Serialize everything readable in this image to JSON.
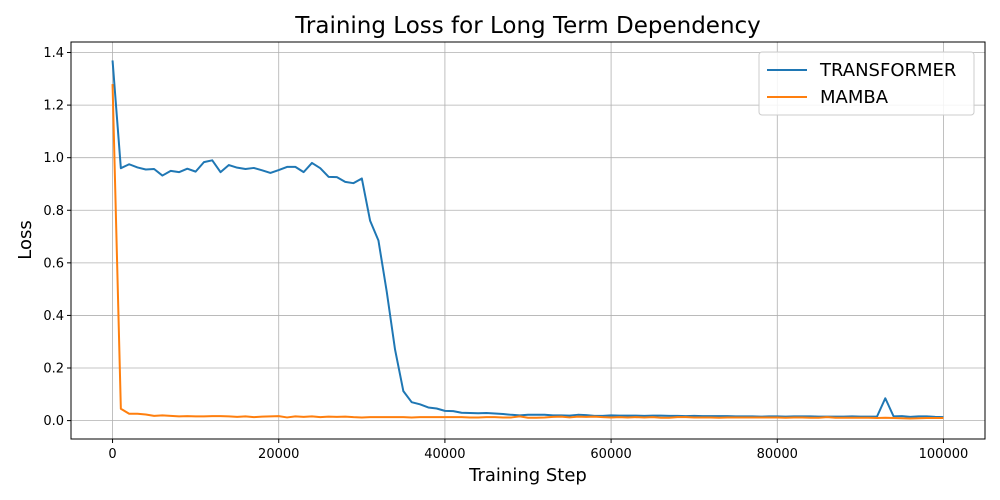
{
  "chart_data": {
    "type": "line",
    "title": "Training Loss for Long Term Dependency",
    "xlabel": "Training Step",
    "ylabel": "Loss",
    "xlim": [
      -5000,
      105000
    ],
    "ylim": [
      -0.07,
      1.44
    ],
    "xticks": [
      0,
      20000,
      40000,
      60000,
      80000,
      100000
    ],
    "xtick_labels": [
      "0",
      "20000",
      "40000",
      "60000",
      "80000",
      "100000"
    ],
    "yticks": [
      0.0,
      0.2,
      0.4,
      0.6,
      0.8,
      1.0,
      1.2,
      1.4
    ],
    "ytick_labels": [
      "0.0",
      "0.2",
      "0.4",
      "0.6",
      "0.8",
      "1.0",
      "1.2",
      "1.4"
    ],
    "grid": true,
    "legend_position": "top-right",
    "x": [
      0,
      1000,
      2000,
      3000,
      4000,
      5000,
      6000,
      7000,
      8000,
      9000,
      10000,
      11000,
      12000,
      13000,
      14000,
      15000,
      16000,
      17000,
      18000,
      19000,
      20000,
      21000,
      22000,
      23000,
      24000,
      25000,
      26000,
      27000,
      28000,
      29000,
      30000,
      31000,
      32000,
      33000,
      34000,
      35000,
      36000,
      37000,
      38000,
      39000,
      40000,
      41000,
      42000,
      43000,
      44000,
      45000,
      46000,
      47000,
      48000,
      49000,
      50000,
      51000,
      52000,
      53000,
      54000,
      55000,
      56000,
      57000,
      58000,
      59000,
      60000,
      61000,
      62000,
      63000,
      64000,
      65000,
      66000,
      67000,
      68000,
      69000,
      70000,
      71000,
      72000,
      73000,
      74000,
      75000,
      76000,
      77000,
      78000,
      79000,
      80000,
      81000,
      82000,
      83000,
      84000,
      85000,
      86000,
      87000,
      88000,
      89000,
      90000,
      91000,
      92000,
      93000,
      94000,
      95000,
      96000,
      97000,
      98000,
      99000,
      100000
    ],
    "series": [
      {
        "name": "TRANSFORMER",
        "color": "#1f77b4",
        "values": [
          1.37,
          0.96,
          0.975,
          0.963,
          0.955,
          0.957,
          0.932,
          0.95,
          0.945,
          0.958,
          0.947,
          0.983,
          0.99,
          0.945,
          0.972,
          0.962,
          0.957,
          0.961,
          0.952,
          0.942,
          0.953,
          0.965,
          0.965,
          0.945,
          0.98,
          0.96,
          0.927,
          0.926,
          0.908,
          0.903,
          0.921,
          0.76,
          0.685,
          0.49,
          0.27,
          0.112,
          0.07,
          0.062,
          0.05,
          0.046,
          0.037,
          0.036,
          0.03,
          0.029,
          0.028,
          0.029,
          0.027,
          0.025,
          0.022,
          0.02,
          0.022,
          0.022,
          0.022,
          0.02,
          0.02,
          0.019,
          0.022,
          0.021,
          0.018,
          0.018,
          0.02,
          0.019,
          0.019,
          0.019,
          0.018,
          0.019,
          0.019,
          0.018,
          0.018,
          0.017,
          0.018,
          0.017,
          0.017,
          0.017,
          0.017,
          0.016,
          0.016,
          0.016,
          0.015,
          0.016,
          0.016,
          0.015,
          0.016,
          0.016,
          0.016,
          0.015,
          0.015,
          0.015,
          0.015,
          0.016,
          0.015,
          0.015,
          0.015,
          0.085,
          0.016,
          0.017,
          0.014,
          0.016,
          0.016,
          0.014,
          0.013
        ]
      },
      {
        "name": "MAMBA",
        "color": "#ff7f0e",
        "values": [
          1.28,
          0.045,
          0.026,
          0.026,
          0.023,
          0.018,
          0.02,
          0.018,
          0.016,
          0.017,
          0.016,
          0.016,
          0.017,
          0.017,
          0.016,
          0.014,
          0.016,
          0.013,
          0.015,
          0.016,
          0.017,
          0.012,
          0.016,
          0.014,
          0.016,
          0.013,
          0.015,
          0.014,
          0.015,
          0.013,
          0.012,
          0.013,
          0.013,
          0.013,
          0.013,
          0.013,
          0.012,
          0.013,
          0.013,
          0.013,
          0.013,
          0.013,
          0.013,
          0.012,
          0.012,
          0.013,
          0.013,
          0.012,
          0.012,
          0.016,
          0.011,
          0.011,
          0.012,
          0.014,
          0.015,
          0.012,
          0.015,
          0.014,
          0.015,
          0.013,
          0.012,
          0.013,
          0.012,
          0.013,
          0.012,
          0.013,
          0.011,
          0.011,
          0.013,
          0.013,
          0.012,
          0.012,
          0.012,
          0.011,
          0.012,
          0.012,
          0.012,
          0.012,
          0.012,
          0.012,
          0.012,
          0.011,
          0.012,
          0.012,
          0.011,
          0.011,
          0.013,
          0.011,
          0.011,
          0.011,
          0.011,
          0.011,
          0.01,
          0.011,
          0.01,
          0.009,
          0.008,
          0.009,
          0.01,
          0.01,
          0.01
        ]
      }
    ]
  }
}
